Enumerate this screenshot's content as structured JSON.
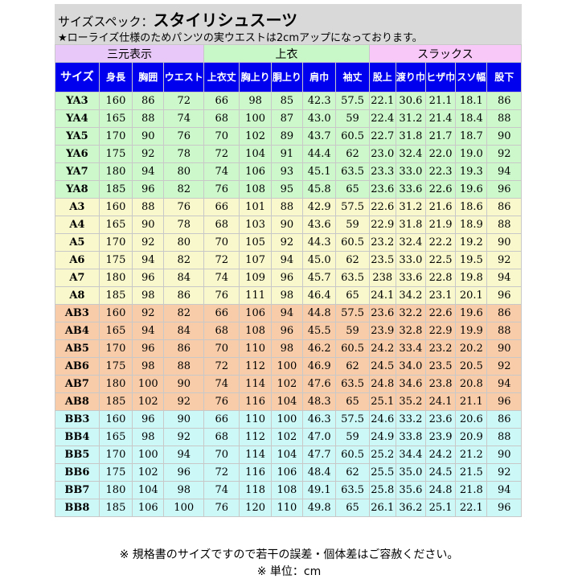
{
  "title_prefix": "サイズスペック：",
  "title_main": "スタイリシュスーツ",
  "note": "★ローライズ仕様のためパンツの実ウエストは2cmアップになっております。",
  "groups": [
    {
      "label": "三元表示",
      "color": "#e8c8f8"
    },
    {
      "label": "上衣",
      "color": "#c8f8c8"
    },
    {
      "label": "スラックス",
      "color": "#f8c8f8"
    }
  ],
  "columns": [
    "サイズ",
    "身長",
    "胸囲",
    "ウエスト",
    "上衣丈",
    "胸上り",
    "胴上り",
    "肩巾",
    "袖丈",
    "股上",
    "渡り巾",
    "ヒザ巾",
    "スソ幅",
    "股下"
  ],
  "row_colors": {
    "YA": "#ccf8cc",
    "A": "#f8f8cc",
    "AB": "#f8cca8",
    "BB": "#ccf8f8"
  },
  "rows": [
    {
      "g": "YA",
      "c": [
        "YA3",
        "160",
        "86",
        "72",
        "66",
        "98",
        "85",
        "42.3",
        "57.5",
        "22.1",
        "30.6",
        "21.1",
        "18.1",
        "86"
      ]
    },
    {
      "g": "YA",
      "c": [
        "YA4",
        "165",
        "88",
        "74",
        "68",
        "100",
        "87",
        "43.0",
        "59",
        "22.4",
        "31.2",
        "21.4",
        "18.4",
        "88"
      ]
    },
    {
      "g": "YA",
      "c": [
        "YA5",
        "170",
        "90",
        "76",
        "70",
        "102",
        "89",
        "43.7",
        "60.5",
        "22.7",
        "31.8",
        "21.7",
        "18.7",
        "90"
      ]
    },
    {
      "g": "YA",
      "c": [
        "YA6",
        "175",
        "92",
        "78",
        "72",
        "104",
        "91",
        "44.4",
        "62",
        "23.0",
        "32.4",
        "22.0",
        "19.0",
        "92"
      ]
    },
    {
      "g": "YA",
      "c": [
        "YA7",
        "180",
        "94",
        "80",
        "74",
        "106",
        "93",
        "45.1",
        "63.5",
        "23.3",
        "33.0",
        "22.3",
        "19.3",
        "94"
      ]
    },
    {
      "g": "YA",
      "c": [
        "YA8",
        "185",
        "96",
        "82",
        "76",
        "108",
        "95",
        "45.8",
        "65",
        "23.6",
        "33.6",
        "22.6",
        "19.6",
        "96"
      ]
    },
    {
      "g": "A",
      "c": [
        "A3",
        "160",
        "88",
        "76",
        "66",
        "101",
        "88",
        "42.9",
        "57.5",
        "22.6",
        "31.2",
        "21.6",
        "18.6",
        "86"
      ]
    },
    {
      "g": "A",
      "c": [
        "A4",
        "165",
        "90",
        "78",
        "68",
        "103",
        "90",
        "43.6",
        "59",
        "22.9",
        "31.8",
        "21.9",
        "18.9",
        "88"
      ]
    },
    {
      "g": "A",
      "c": [
        "A5",
        "170",
        "92",
        "80",
        "70",
        "105",
        "92",
        "44.3",
        "60.5",
        "23.2",
        "32.4",
        "22.2",
        "19.2",
        "90"
      ]
    },
    {
      "g": "A",
      "c": [
        "A6",
        "175",
        "94",
        "82",
        "72",
        "107",
        "94",
        "45.0",
        "62",
        "23.5",
        "33.0",
        "22.5",
        "19.5",
        "92"
      ]
    },
    {
      "g": "A",
      "c": [
        "A7",
        "180",
        "96",
        "84",
        "74",
        "109",
        "96",
        "45.7",
        "63.5",
        "238",
        "33.6",
        "22.8",
        "19.8",
        "94"
      ]
    },
    {
      "g": "A",
      "c": [
        "A8",
        "185",
        "98",
        "86",
        "76",
        "111",
        "98",
        "46.4",
        "65",
        "24.1",
        "34.2",
        "23.1",
        "20.1",
        "96"
      ]
    },
    {
      "g": "AB",
      "c": [
        "AB3",
        "160",
        "92",
        "82",
        "66",
        "106",
        "94",
        "44.8",
        "57.5",
        "23.6",
        "32.2",
        "22.6",
        "19.6",
        "86"
      ]
    },
    {
      "g": "AB",
      "c": [
        "AB4",
        "165",
        "94",
        "84",
        "68",
        "108",
        "96",
        "45.5",
        "59",
        "23.9",
        "32.8",
        "22.9",
        "19.9",
        "88"
      ]
    },
    {
      "g": "AB",
      "c": [
        "AB5",
        "170",
        "96",
        "86",
        "70",
        "110",
        "98",
        "46.2",
        "60.5",
        "24.2",
        "33.4",
        "23.2",
        "20.2",
        "90"
      ]
    },
    {
      "g": "AB",
      "c": [
        "AB6",
        "175",
        "98",
        "88",
        "72",
        "112",
        "100",
        "46.9",
        "62",
        "24.5",
        "34.0",
        "23.5",
        "20.5",
        "92"
      ]
    },
    {
      "g": "AB",
      "c": [
        "AB7",
        "180",
        "100",
        "90",
        "74",
        "114",
        "102",
        "47.6",
        "63.5",
        "24.8",
        "34.6",
        "23.8",
        "20.8",
        "94"
      ]
    },
    {
      "g": "AB",
      "c": [
        "AB8",
        "185",
        "102",
        "92",
        "76",
        "116",
        "104",
        "48.3",
        "65",
        "25.1",
        "35.2",
        "24.1",
        "21.1",
        "96"
      ]
    },
    {
      "g": "BB",
      "c": [
        "BB3",
        "160",
        "96",
        "90",
        "66",
        "110",
        "100",
        "46.3",
        "57.5",
        "24.6",
        "33.2",
        "23.6",
        "20.6",
        "86"
      ]
    },
    {
      "g": "BB",
      "c": [
        "BB4",
        "165",
        "98",
        "92",
        "68",
        "112",
        "102",
        "47.0",
        "59",
        "24.9",
        "33.8",
        "23.9",
        "20.9",
        "88"
      ]
    },
    {
      "g": "BB",
      "c": [
        "BB5",
        "170",
        "100",
        "94",
        "70",
        "114",
        "104",
        "47.7",
        "60.5",
        "25.2",
        "34.4",
        "24.2",
        "21.2",
        "90"
      ]
    },
    {
      "g": "BB",
      "c": [
        "BB6",
        "175",
        "102",
        "96",
        "72",
        "116",
        "106",
        "48.4",
        "62",
        "25.5",
        "35.0",
        "24.5",
        "21.5",
        "92"
      ]
    },
    {
      "g": "BB",
      "c": [
        "BB7",
        "180",
        "104",
        "98",
        "74",
        "118",
        "108",
        "49.1",
        "63.5",
        "25.8",
        "35.6",
        "24.8",
        "21.8",
        "94"
      ]
    },
    {
      "g": "BB",
      "c": [
        "BB8",
        "185",
        "106",
        "100",
        "76",
        "120",
        "110",
        "49.8",
        "65",
        "26.1",
        "36.2",
        "25.1",
        "22.1",
        "96"
      ]
    }
  ],
  "footer": {
    "line1": "※ 規格書のサイズですので若干の誤差・個体差はご容赦ください。",
    "line2": "※ 単位：cm"
  }
}
